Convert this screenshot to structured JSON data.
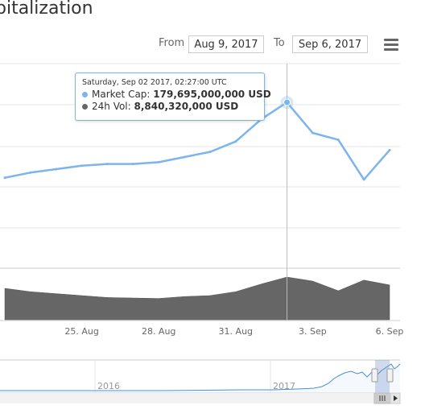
{
  "header": {
    "title": "pitalization",
    "from_label": "From",
    "from_value": "Aug 9, 2017",
    "to_label": "To",
    "to_value": "Sep 6, 2017"
  },
  "tooltip": {
    "header": "Saturday, Sep 02 2017, 02:27:00 UTC",
    "market_cap_label": "Market Cap: ",
    "market_cap_value": "179,695,000,000 USD",
    "volume_label": "24h Vol: ",
    "volume_value": "8,840,320,000 USD"
  },
  "navigator": {
    "labels": [
      "2016",
      "2017"
    ]
  },
  "colors": {
    "market_cap": "#7cb5ec",
    "volume": "#666666",
    "grid": "#e6e6e6"
  },
  "chart_data": {
    "type": "line",
    "x_ticks": [
      "25. Aug",
      "28. Aug",
      "31. Aug",
      "3. Sep",
      "6. Sep"
    ],
    "x_range": [
      "2017-08-22",
      "2017-09-06"
    ],
    "series": [
      {
        "name": "Market Cap",
        "x": [
          "2017-08-22",
          "2017-08-23",
          "2017-08-24",
          "2017-08-25",
          "2017-08-26",
          "2017-08-27",
          "2017-08-28",
          "2017-08-29",
          "2017-08-30",
          "2017-08-31",
          "2017-09-01",
          "2017-09-02",
          "2017-09-03",
          "2017-09-04",
          "2017-09-05",
          "2017-09-06"
        ],
        "values": [
          136,
          139,
          141,
          143,
          144,
          144,
          145,
          148,
          151,
          157,
          170,
          179.695,
          162,
          158,
          135,
          152
        ],
        "unit": "B USD"
      },
      {
        "name": "24h Vol",
        "x": [
          "2017-08-22",
          "2017-08-23",
          "2017-08-24",
          "2017-08-25",
          "2017-08-26",
          "2017-08-27",
          "2017-08-28",
          "2017-08-29",
          "2017-08-30",
          "2017-08-31",
          "2017-09-01",
          "2017-09-02",
          "2017-09-03",
          "2017-09-04",
          "2017-09-05",
          "2017-09-06"
        ],
        "values": [
          6.5,
          5.8,
          5.4,
          5.0,
          4.6,
          4.5,
          4.4,
          4.8,
          5.0,
          5.8,
          7.4,
          8.84,
          8.0,
          6.0,
          8.2,
          7.2
        ],
        "unit": "B USD"
      }
    ],
    "highlight": {
      "x": "2017-09-02",
      "series": "Market Cap"
    },
    "grid": true,
    "legend": "none"
  }
}
